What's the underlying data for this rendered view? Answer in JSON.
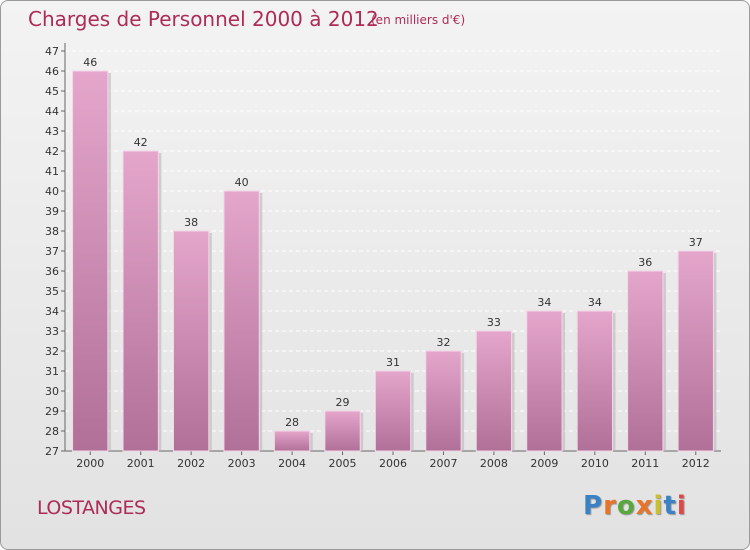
{
  "header": {
    "title": "Charges de Personnel 2000 à 2012",
    "subtitle": "(en milliers d'€)"
  },
  "footer": {
    "commune": "LOSTANGES",
    "logo": "Proxiti",
    "logo_colors": [
      "#3b82c4",
      "#e8742a",
      "#58a83c",
      "#e8742a",
      "#c8c030",
      "#3b82c4",
      "#e04848"
    ]
  },
  "chart_data": {
    "type": "bar",
    "categories": [
      "2000",
      "2001",
      "2002",
      "2003",
      "2004",
      "2005",
      "2006",
      "2007",
      "2008",
      "2009",
      "2010",
      "2011",
      "2012"
    ],
    "values": [
      46,
      42,
      38,
      40,
      28,
      29,
      31,
      32,
      33,
      34,
      34,
      36,
      37
    ],
    "title": "Charges de Personnel 2000 à 2012",
    "subtitle": "(en milliers d'€)",
    "xlabel": "",
    "ylabel": "",
    "ylim": [
      27,
      47
    ],
    "yticks": [
      27,
      28,
      29,
      30,
      31,
      32,
      33,
      34,
      35,
      36,
      37,
      38,
      39,
      40,
      41,
      42,
      43,
      44,
      45,
      46,
      47
    ],
    "grid": true,
    "bar_color_top": "#e5a6cc",
    "bar_color_bottom": "#b07098"
  }
}
